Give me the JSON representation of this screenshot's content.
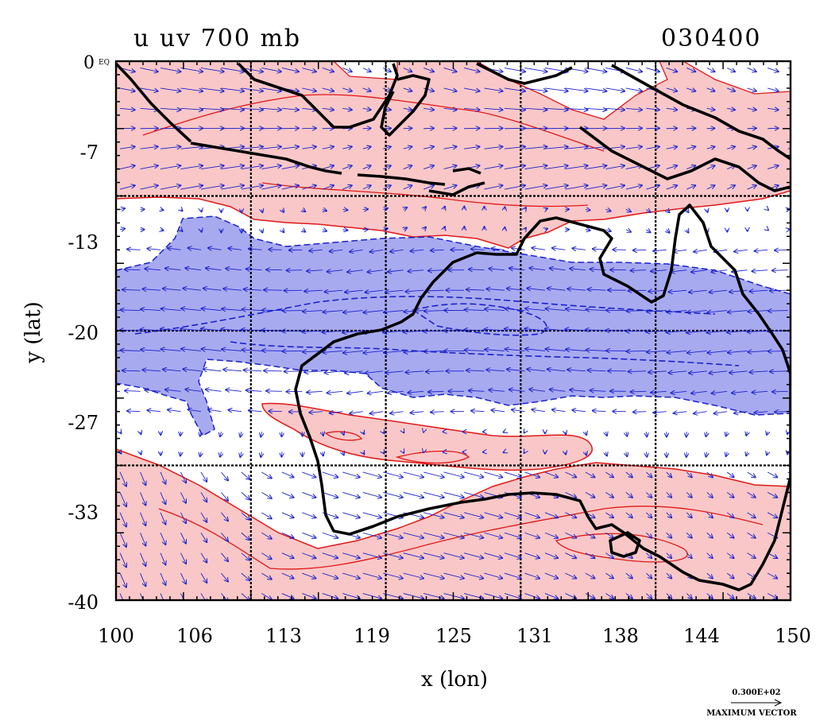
{
  "title": "u uv 700 mb",
  "datestamp": "030400",
  "corner_label": "0",
  "corner_unit": "EQ",
  "xlabel": "x (lon)",
  "ylabel": "y (lat)",
  "x_ticks": [
    "100",
    "106",
    "113",
    "119",
    "125",
    "131",
    "138",
    "144",
    "150"
  ],
  "y_ticks": [
    "-7",
    "-13",
    "-20",
    "-27",
    "-33",
    "-40"
  ],
  "lon_range": [
    100,
    150
  ],
  "lat_range": [
    -40,
    0
  ],
  "grid_lines_lon": [
    110,
    120,
    130,
    140
  ],
  "grid_lines_lat": [
    -10,
    -20,
    -30
  ],
  "legend": {
    "magnitude": "0.300E+02",
    "caption": "MAXIMUM VECTOR"
  },
  "colors": {
    "positive_fill": "#f9c7c7",
    "positive_line": "#e01818",
    "negative_fill": "#a8aaf0",
    "negative_line": "#1a22cc",
    "vector": "#1a22cc",
    "coast": "#000000"
  }
}
